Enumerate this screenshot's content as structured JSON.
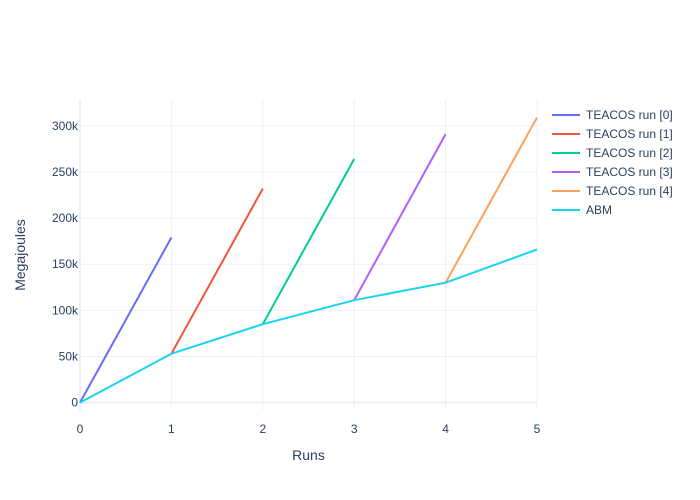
{
  "chart_data": {
    "type": "line",
    "xlabel": "Runs",
    "ylabel": "Megajoules",
    "xlim": [
      0,
      5
    ],
    "ylim": [
      -8000,
      328000
    ],
    "x_ticks": [
      0,
      1,
      2,
      3,
      4,
      5
    ],
    "x_tick_labels": [
      "0",
      "1",
      "2",
      "3",
      "4",
      "5"
    ],
    "y_ticks": [
      0,
      50000,
      100000,
      150000,
      200000,
      250000,
      300000
    ],
    "y_tick_labels": [
      "0",
      "50k",
      "100k",
      "150k",
      "200k",
      "250k",
      "300k"
    ],
    "grid": true,
    "legend_position": "top-right",
    "series": [
      {
        "name": "TEACOS run [0]",
        "color": "#636efa",
        "x": [
          0,
          1
        ],
        "y": [
          0,
          179000
        ]
      },
      {
        "name": "TEACOS run [1]",
        "color": "#ef553b",
        "x": [
          1,
          2
        ],
        "y": [
          53000,
          232000
        ]
      },
      {
        "name": "TEACOS run [2]",
        "color": "#00cc96",
        "x": [
          2,
          3
        ],
        "y": [
          85000,
          264000
        ]
      },
      {
        "name": "TEACOS run [3]",
        "color": "#ab63fa",
        "x": [
          3,
          4
        ],
        "y": [
          111000,
          291000
        ]
      },
      {
        "name": "TEACOS run [4]",
        "color": "#ffa15a",
        "x": [
          4,
          5
        ],
        "y": [
          130000,
          309000
        ]
      },
      {
        "name": "ABM",
        "color": "#19d3f3",
        "x": [
          0,
          1,
          2,
          3,
          4,
          5
        ],
        "y": [
          0,
          53000,
          85000,
          111000,
          130000,
          166000
        ]
      }
    ]
  }
}
